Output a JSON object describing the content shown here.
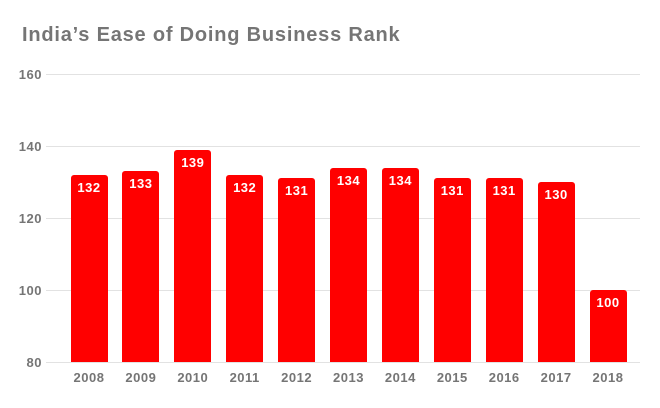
{
  "title": "India’s Ease of Doing Business Rank",
  "colors": {
    "bar": "#ff0000",
    "axis_text": "#757575",
    "title_text": "#757575",
    "gridline": "#e2e2e2",
    "value_label": "#ffffff",
    "background": "#ffffff"
  },
  "chart_data": {
    "type": "bar",
    "title": "India’s Ease of Doing Business Rank",
    "categories": [
      "2008",
      "2009",
      "2010",
      "2011",
      "2012",
      "2013",
      "2014",
      "2015",
      "2016",
      "2017",
      "2018"
    ],
    "values": [
      132,
      133,
      139,
      132,
      131,
      134,
      134,
      131,
      131,
      130,
      100
    ],
    "xlabel": "",
    "ylabel": "",
    "ylim": [
      80,
      160
    ],
    "yticks": [
      80,
      100,
      120,
      140,
      160
    ],
    "grid": true,
    "legend": "none",
    "data_labels": "inside-top-white-bold"
  }
}
